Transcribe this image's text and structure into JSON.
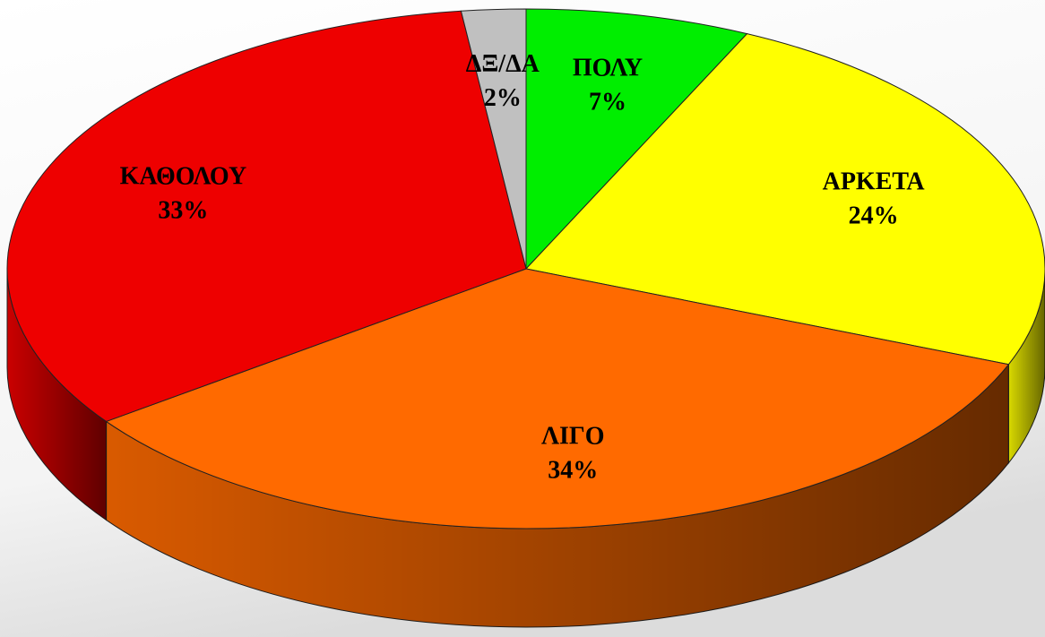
{
  "chart_data": {
    "type": "pie3d",
    "categories": [
      "ΠΟΛΥ",
      "ΑΡΚΕΤΑ",
      "ΛΙΓΟ",
      "ΚΑΘΟΛΟΥ",
      "ΔΞ/ΔΑ"
    ],
    "values": [
      7,
      24,
      34,
      33,
      2
    ],
    "value_labels": [
      "7%",
      "24%",
      "34%",
      "33%",
      "2%"
    ],
    "colors": [
      "#00ee00",
      "#ffff00",
      "#ff6a00",
      "#ee0000",
      "#c0c0c0"
    ]
  }
}
